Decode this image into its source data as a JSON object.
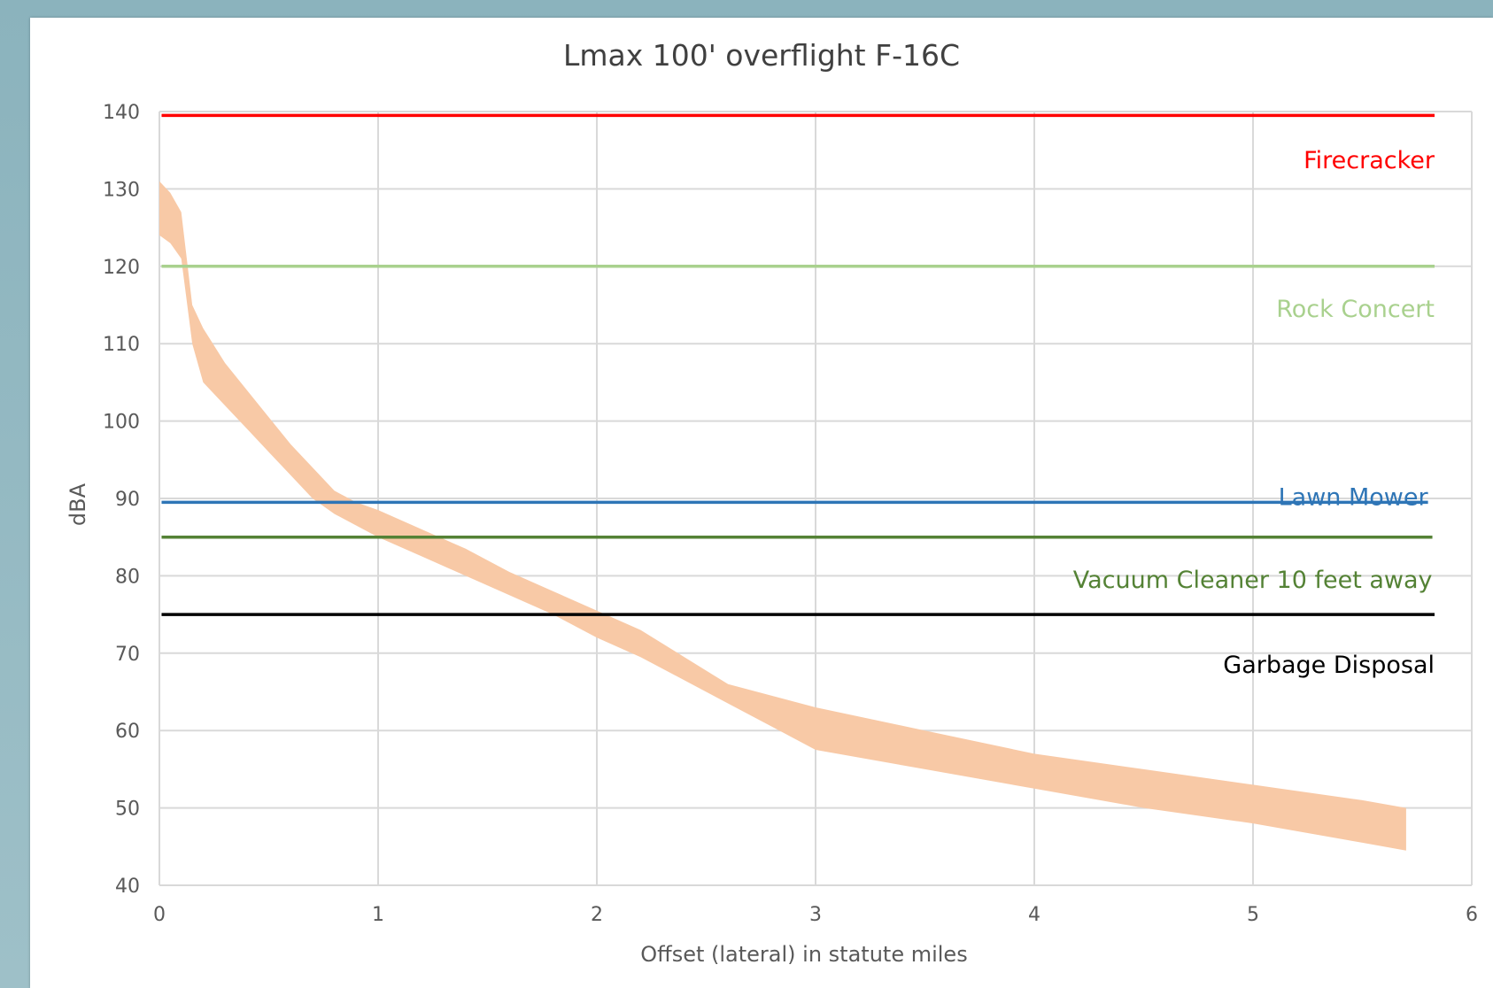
{
  "chart_data": {
    "type": "area",
    "title": "Lmax 100' overflight F-16C",
    "xlabel": "Offset (lateral) in statute miles",
    "ylabel": "dBA",
    "xlim": [
      0,
      6
    ],
    "ylim": [
      40,
      140
    ],
    "x_ticks": [
      0,
      1,
      2,
      3,
      4,
      5,
      6
    ],
    "y_ticks": [
      40,
      50,
      60,
      70,
      80,
      90,
      100,
      110,
      120,
      130,
      140
    ],
    "grid": true,
    "band": {
      "color": "#f8c9a6",
      "x": [
        0.0,
        0.05,
        0.1,
        0.15,
        0.2,
        0.3,
        0.4,
        0.5,
        0.6,
        0.7,
        0.8,
        0.9,
        1.0,
        1.2,
        1.4,
        1.6,
        1.8,
        2.0,
        2.2,
        2.4,
        2.6,
        2.8,
        3.0,
        3.5,
        4.0,
        4.5,
        5.0,
        5.5,
        5.7
      ],
      "upper": [
        131,
        129.5,
        127,
        115,
        112,
        107.5,
        104,
        100.5,
        97,
        94,
        91,
        89.5,
        88.5,
        86,
        83.5,
        80.5,
        78,
        75.5,
        73,
        69.5,
        66,
        64.5,
        63,
        60,
        57,
        55,
        53,
        51,
        50
      ],
      "lower": [
        124,
        123,
        121,
        110,
        105,
        102,
        99,
        96,
        93,
        90,
        88,
        86.5,
        85,
        82.5,
        80,
        77.5,
        75,
        72,
        69.5,
        66.5,
        63.5,
        60.5,
        57.5,
        55,
        52.5,
        50,
        48,
        45.5,
        44.5
      ]
    },
    "reference_lines": [
      {
        "name": "Firecracker",
        "y": 139.5,
        "color": "#ff0000",
        "label_y": 133.7,
        "x_end": 5.83
      },
      {
        "name": "Rock Concert",
        "y": 120,
        "color": "#a9d18e",
        "label_y": 114.5,
        "x_end": 5.83
      },
      {
        "name": "Lawn Mower",
        "y": 89.5,
        "color": "#2e75b6",
        "label_y": 90.2,
        "x_end": 5.8
      },
      {
        "name": "Vacuum Cleaner 10 feet away",
        "y": 85,
        "color": "#548235",
        "label_y": 79.5,
        "x_end": 5.82
      },
      {
        "name": "Garbage Disposal",
        "y": 75,
        "color": "#000000",
        "label_y": 68.5,
        "x_end": 5.83
      }
    ]
  }
}
